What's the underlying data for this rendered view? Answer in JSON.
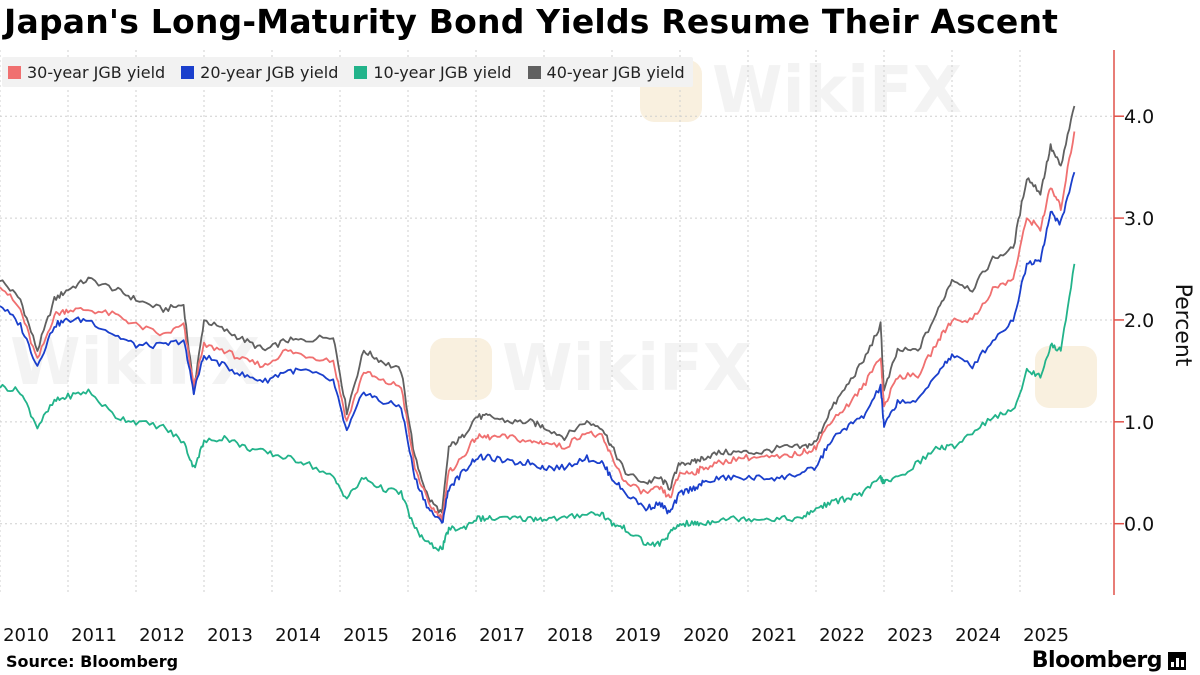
{
  "title": "Japan's Long-Maturity Bond Yields Resume Their Ascent",
  "source": "Source: Bloomberg",
  "brand": "Bloomberg",
  "watermark": "WikiFX",
  "colors": {
    "y30": "#f07070",
    "y20": "#1a3fcc",
    "y10": "#22b38a",
    "y40": "#606060",
    "axis": "#e0524a",
    "grid": "#cfcfcf"
  },
  "legend": [
    {
      "label": "30-year JGB yield",
      "color": "#f07070"
    },
    {
      "label": "20-year JGB yield",
      "color": "#1a3fcc"
    },
    {
      "label": "10-year JGB yield",
      "color": "#22b38a"
    },
    {
      "label": "40-year JGB yield",
      "color": "#606060"
    }
  ],
  "chart_data": {
    "type": "line",
    "title": "Japan's Long-Maturity Bond Yields Resume Their Ascent",
    "ylabel": "Percent",
    "ylim": [
      -0.7,
      4.65
    ],
    "xlim": [
      2010.0,
      2026.0
    ],
    "yticks": [
      0.0,
      1.0,
      2.0,
      3.0,
      4.0
    ],
    "ytick_labels": [
      "0.0",
      "1.0",
      "2.0",
      "3.0",
      "4.0"
    ],
    "xtick_labels": [
      "2010",
      "2011",
      "2012",
      "2013",
      "2014",
      "2015",
      "2016",
      "2017",
      "2018",
      "2019",
      "2020",
      "2021",
      "2022",
      "2023",
      "2024",
      "2025"
    ],
    "grid": true,
    "legend_position": "top-left",
    "series": [
      {
        "name": "40-year JGB yield",
        "color": "#606060",
        "x": [
          2010.0,
          2010.3,
          2010.55,
          2010.8,
          2011.0,
          2011.3,
          2011.7,
          2012.0,
          2012.4,
          2012.7,
          2012.85,
          2013.0,
          2013.3,
          2013.6,
          2013.9,
          2014.2,
          2014.5,
          2014.9,
          2015.1,
          2015.35,
          2015.6,
          2015.9,
          2016.1,
          2016.3,
          2016.5,
          2016.6,
          2016.8,
          2017.0,
          2017.2,
          2017.5,
          2017.8,
          2018.0,
          2018.3,
          2018.6,
          2018.85,
          2019.0,
          2019.2,
          2019.5,
          2019.7,
          2019.85,
          2020.0,
          2020.2,
          2020.35,
          2020.6,
          2020.9,
          2021.2,
          2021.5,
          2021.8,
          2022.0,
          2022.2,
          2022.45,
          2022.7,
          2022.95,
          2023.0,
          2023.2,
          2023.5,
          2023.8,
          2024.0,
          2024.3,
          2024.6,
          2024.9,
          2025.1,
          2025.3,
          2025.45,
          2025.6,
          2025.8
        ],
        "values": [
          2.4,
          2.2,
          1.7,
          2.2,
          2.3,
          2.4,
          2.3,
          2.2,
          2.1,
          2.15,
          1.3,
          2.0,
          1.9,
          1.8,
          1.7,
          1.8,
          1.8,
          1.85,
          1.1,
          1.7,
          1.6,
          1.5,
          0.65,
          0.25,
          0.1,
          0.75,
          0.85,
          1.05,
          1.05,
          1.0,
          1.0,
          0.95,
          0.85,
          1.0,
          0.95,
          0.75,
          0.5,
          0.4,
          0.45,
          0.35,
          0.6,
          0.6,
          0.65,
          0.7,
          0.7,
          0.7,
          0.75,
          0.75,
          0.8,
          1.1,
          1.35,
          1.6,
          1.95,
          1.3,
          1.7,
          1.7,
          2.1,
          2.4,
          2.3,
          2.6,
          2.7,
          3.4,
          3.25,
          3.7,
          3.5,
          4.1
        ]
      },
      {
        "name": "30-year JGB yield",
        "color": "#f07070",
        "x": [
          2010.0,
          2010.3,
          2010.55,
          2010.8,
          2011.0,
          2011.3,
          2011.7,
          2012.0,
          2012.4,
          2012.7,
          2012.85,
          2013.0,
          2013.3,
          2013.6,
          2013.9,
          2014.2,
          2014.5,
          2014.9,
          2015.1,
          2015.35,
          2015.6,
          2015.9,
          2016.1,
          2016.3,
          2016.5,
          2016.6,
          2016.8,
          2017.0,
          2017.2,
          2017.5,
          2017.8,
          2018.0,
          2018.3,
          2018.6,
          2018.85,
          2019.0,
          2019.2,
          2019.5,
          2019.7,
          2019.85,
          2020.0,
          2020.2,
          2020.35,
          2020.6,
          2020.9,
          2021.2,
          2021.5,
          2021.8,
          2022.0,
          2022.2,
          2022.45,
          2022.7,
          2022.95,
          2023.0,
          2023.2,
          2023.5,
          2023.8,
          2024.0,
          2024.3,
          2024.6,
          2024.9,
          2025.1,
          2025.3,
          2025.45,
          2025.6,
          2025.8
        ],
        "values": [
          2.35,
          2.1,
          1.6,
          2.05,
          2.1,
          2.1,
          2.05,
          1.95,
          1.85,
          1.95,
          1.35,
          1.75,
          1.7,
          1.6,
          1.55,
          1.7,
          1.65,
          1.6,
          1.0,
          1.5,
          1.4,
          1.35,
          0.55,
          0.2,
          0.05,
          0.5,
          0.65,
          0.85,
          0.85,
          0.85,
          0.8,
          0.8,
          0.75,
          0.9,
          0.85,
          0.65,
          0.4,
          0.3,
          0.35,
          0.25,
          0.5,
          0.5,
          0.55,
          0.6,
          0.65,
          0.65,
          0.65,
          0.7,
          0.75,
          1.0,
          1.15,
          1.35,
          1.65,
          1.15,
          1.45,
          1.45,
          1.8,
          2.0,
          2.0,
          2.3,
          2.4,
          3.0,
          2.9,
          3.3,
          3.1,
          3.85
        ]
      },
      {
        "name": "20-year JGB yield",
        "color": "#1a3fcc",
        "x": [
          2010.0,
          2010.3,
          2010.55,
          2010.8,
          2011.0,
          2011.3,
          2011.7,
          2012.0,
          2012.4,
          2012.7,
          2012.85,
          2013.0,
          2013.3,
          2013.6,
          2013.9,
          2014.2,
          2014.5,
          2014.9,
          2015.1,
          2015.35,
          2015.6,
          2015.9,
          2016.1,
          2016.3,
          2016.5,
          2016.6,
          2016.8,
          2017.0,
          2017.2,
          2017.5,
          2017.8,
          2018.0,
          2018.3,
          2018.6,
          2018.85,
          2019.0,
          2019.2,
          2019.5,
          2019.7,
          2019.85,
          2020.0,
          2020.2,
          2020.35,
          2020.6,
          2020.9,
          2021.2,
          2021.5,
          2021.8,
          2022.0,
          2022.2,
          2022.45,
          2022.7,
          2022.95,
          2023.0,
          2023.2,
          2023.5,
          2023.8,
          2024.0,
          2024.3,
          2024.6,
          2024.9,
          2025.1,
          2025.3,
          2025.45,
          2025.6,
          2025.8
        ],
        "values": [
          2.15,
          1.95,
          1.55,
          1.95,
          2.0,
          2.0,
          1.85,
          1.75,
          1.75,
          1.8,
          1.3,
          1.65,
          1.55,
          1.45,
          1.4,
          1.5,
          1.5,
          1.4,
          0.9,
          1.3,
          1.2,
          1.15,
          0.45,
          0.15,
          0.0,
          0.35,
          0.5,
          0.65,
          0.65,
          0.6,
          0.6,
          0.55,
          0.55,
          0.65,
          0.6,
          0.45,
          0.3,
          0.15,
          0.2,
          0.1,
          0.3,
          0.35,
          0.4,
          0.45,
          0.45,
          0.45,
          0.45,
          0.5,
          0.55,
          0.8,
          0.95,
          1.05,
          1.35,
          0.95,
          1.2,
          1.2,
          1.5,
          1.65,
          1.55,
          1.8,
          2.0,
          2.55,
          2.6,
          3.05,
          2.95,
          3.45
        ]
      },
      {
        "name": "10-year JGB yield",
        "color": "#22b38a",
        "x": [
          2010.0,
          2010.3,
          2010.55,
          2010.8,
          2011.0,
          2011.3,
          2011.7,
          2012.0,
          2012.4,
          2012.7,
          2012.85,
          2013.0,
          2013.3,
          2013.6,
          2013.9,
          2014.2,
          2014.5,
          2014.9,
          2015.1,
          2015.35,
          2015.6,
          2015.9,
          2016.1,
          2016.3,
          2016.5,
          2016.6,
          2016.8,
          2017.0,
          2017.2,
          2017.5,
          2017.8,
          2018.0,
          2018.3,
          2018.6,
          2018.85,
          2019.0,
          2019.2,
          2019.5,
          2019.7,
          2019.85,
          2020.0,
          2020.2,
          2020.35,
          2020.6,
          2020.9,
          2021.2,
          2021.5,
          2021.8,
          2022.0,
          2022.2,
          2022.45,
          2022.7,
          2022.95,
          2023.0,
          2023.2,
          2023.5,
          2023.8,
          2024.0,
          2024.3,
          2024.6,
          2024.9,
          2025.1,
          2025.3,
          2025.45,
          2025.6,
          2025.8
        ],
        "values": [
          1.35,
          1.3,
          0.95,
          1.2,
          1.25,
          1.3,
          1.05,
          1.0,
          0.95,
          0.8,
          0.55,
          0.8,
          0.85,
          0.75,
          0.7,
          0.65,
          0.6,
          0.45,
          0.25,
          0.45,
          0.35,
          0.3,
          -0.05,
          -0.2,
          -0.25,
          -0.05,
          -0.05,
          0.05,
          0.05,
          0.05,
          0.05,
          0.05,
          0.05,
          0.1,
          0.1,
          0.0,
          -0.05,
          -0.2,
          -0.2,
          -0.1,
          0.0,
          0.0,
          0.0,
          0.05,
          0.05,
          0.05,
          0.05,
          0.05,
          0.15,
          0.2,
          0.25,
          0.3,
          0.45,
          0.4,
          0.45,
          0.6,
          0.75,
          0.75,
          0.9,
          1.05,
          1.1,
          1.5,
          1.45,
          1.75,
          1.7,
          2.55
        ]
      }
    ]
  }
}
